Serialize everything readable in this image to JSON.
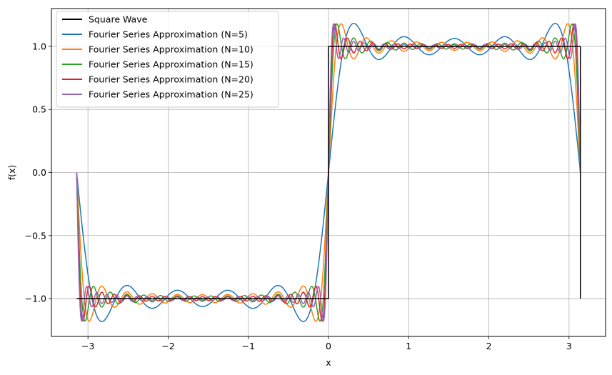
{
  "chart_data": {
    "type": "line",
    "xlabel": "x",
    "ylabel": "f(x)",
    "xlim": [
      -3.4558,
      3.4558
    ],
    "ylim": [
      -1.3,
      1.3
    ],
    "xticks": [
      -3,
      -2,
      -1,
      0,
      1,
      2,
      3
    ],
    "xtick_labels": [
      "−3",
      "−2",
      "−1",
      "0",
      "1",
      "2",
      "3"
    ],
    "yticks": [
      -1.0,
      -0.5,
      0.0,
      0.5,
      1.0
    ],
    "ytick_labels": [
      "−1.0",
      "−0.5",
      "0.0",
      "0.5",
      "1.0"
    ],
    "grid": true,
    "legend_position": "top-left",
    "series": [
      {
        "name": "Square Wave",
        "color": "#000000",
        "kind": "step",
        "x": [
          -3.1416,
          -0.0001,
          0.0,
          3.1415,
          3.1416
        ],
        "y": [
          -1,
          -1,
          1,
          1,
          -1
        ]
      },
      {
        "name": "Fourier Series Approximation (N=5)",
        "color": "#1f77b4",
        "kind": "fourier",
        "N": 5,
        "x_range": [
          -3.1416,
          3.1416
        ],
        "samples": 1000
      },
      {
        "name": "Fourier Series Approximation (N=10)",
        "color": "#ff7f0e",
        "kind": "fourier",
        "N": 10,
        "x_range": [
          -3.1416,
          3.1416
        ],
        "samples": 1000
      },
      {
        "name": "Fourier Series Approximation (N=15)",
        "color": "#2ca02c",
        "kind": "fourier",
        "N": 15,
        "x_range": [
          -3.1416,
          3.1416
        ],
        "samples": 1000
      },
      {
        "name": "Fourier Series Approximation (N=20)",
        "color": "#d62728",
        "kind": "fourier",
        "N": 20,
        "x_range": [
          -3.1416,
          3.1416
        ],
        "samples": 1000
      },
      {
        "name": "Fourier Series Approximation (N=25)",
        "color": "#9467bd",
        "kind": "fourier",
        "N": 25,
        "x_range": [
          -3.1416,
          3.1416
        ],
        "samples": 1000
      }
    ]
  }
}
